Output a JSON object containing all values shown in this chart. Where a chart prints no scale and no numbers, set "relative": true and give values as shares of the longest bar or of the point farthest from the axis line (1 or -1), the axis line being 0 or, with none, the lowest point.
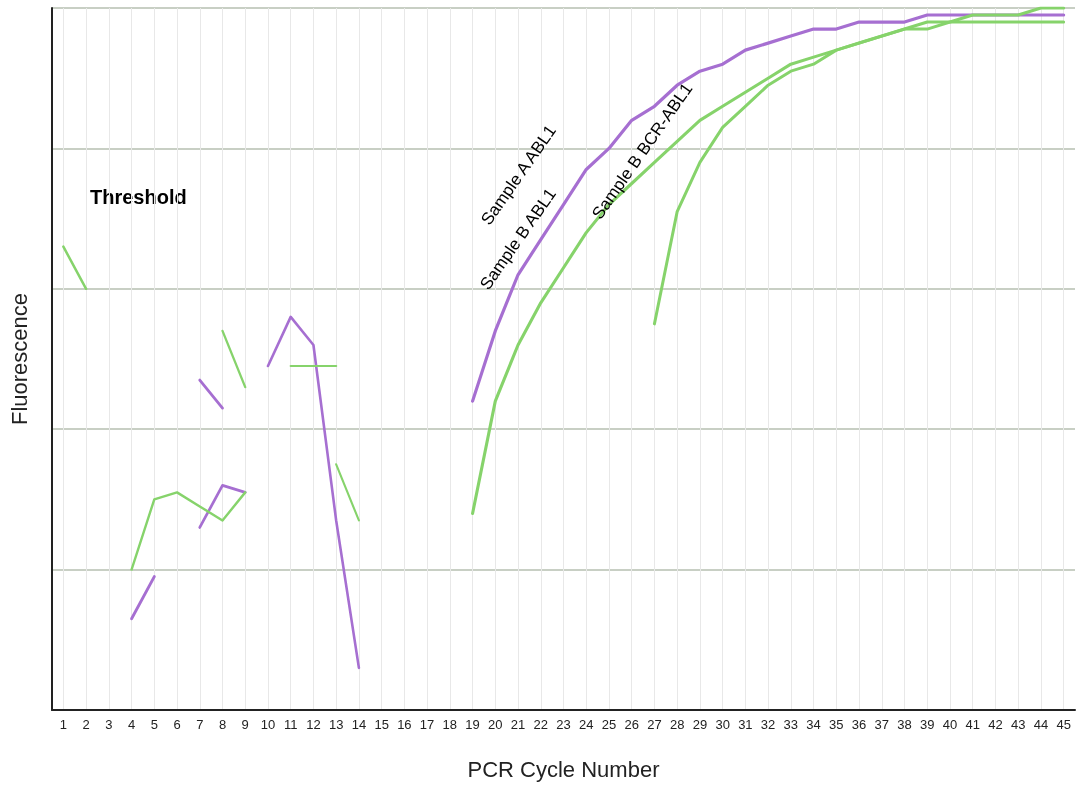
{
  "chart_data": {
    "type": "line",
    "relative": true,
    "xlabel": "PCR Cycle Number",
    "ylabel": "Fluorescence",
    "annotations": [
      "Threshold"
    ],
    "xlim": [
      0.5,
      45.5
    ],
    "xticks": [
      1,
      2,
      3,
      4,
      5,
      6,
      7,
      8,
      9,
      10,
      11,
      12,
      13,
      14,
      15,
      16,
      17,
      18,
      19,
      20,
      21,
      22,
      23,
      24,
      25,
      26,
      27,
      28,
      29,
      30,
      31,
      32,
      33,
      34,
      35,
      36,
      37,
      38,
      39,
      40,
      41,
      42,
      43,
      44,
      45
    ],
    "grid": true,
    "legend": false,
    "marker": "none",
    "line_style": "solid",
    "series": [
      {
        "name": "Sample A ABL1",
        "color": "#a66fd1",
        "x": [
          19,
          20,
          21,
          22,
          23,
          24,
          25,
          26,
          27,
          28,
          29,
          30,
          31,
          32,
          33,
          34,
          35,
          36,
          37,
          38,
          39,
          40,
          41,
          42,
          43,
          44,
          45
        ],
        "values": [
          0.44,
          0.54,
          0.62,
          0.67,
          0.72,
          0.77,
          0.8,
          0.84,
          0.86,
          0.89,
          0.91,
          0.92,
          0.94,
          0.95,
          0.96,
          0.97,
          0.97,
          0.98,
          0.98,
          0.98,
          0.99,
          0.99,
          0.99,
          0.99,
          0.99,
          0.99,
          0.99
        ]
      },
      {
        "name": "Sample B ABL1",
        "color": "#86d36b",
        "x": [
          19,
          20,
          21,
          22,
          23,
          24,
          25,
          26,
          27,
          28,
          29,
          30,
          31,
          32,
          33,
          34,
          35,
          36,
          37,
          38,
          39,
          40,
          41,
          42,
          43,
          44,
          45
        ],
        "values": [
          0.28,
          0.44,
          0.52,
          0.58,
          0.63,
          0.68,
          0.72,
          0.75,
          0.78,
          0.81,
          0.84,
          0.86,
          0.88,
          0.9,
          0.92,
          0.93,
          0.94,
          0.95,
          0.96,
          0.97,
          0.98,
          0.98,
          0.99,
          0.99,
          0.99,
          1.0,
          1.0
        ]
      },
      {
        "name": "Sample B BCR-ABL1",
        "color": "#86d36b",
        "x": [
          27,
          28,
          29,
          30,
          31,
          32,
          33,
          34,
          35,
          36,
          37,
          38,
          39,
          40,
          41,
          42,
          43,
          44,
          45
        ],
        "values": [
          0.55,
          0.71,
          0.78,
          0.83,
          0.86,
          0.89,
          0.91,
          0.92,
          0.94,
          0.95,
          0.96,
          0.97,
          0.97,
          0.98,
          0.98,
          0.98,
          0.98,
          0.98,
          0.98
        ]
      },
      {
        "color": "#a66fd1",
        "x": [
          4,
          5
        ],
        "values": [
          0.13,
          0.19
        ]
      },
      {
        "color": "#a66fd1",
        "x": [
          7,
          8
        ],
        "values": [
          0.47,
          0.43
        ]
      },
      {
        "color": "#a66fd1",
        "x": [
          7,
          8,
          9
        ],
        "values": [
          0.26,
          0.32,
          0.31
        ]
      },
      {
        "color": "#a66fd1",
        "x": [
          10,
          11,
          12,
          13,
          14
        ],
        "values": [
          0.49,
          0.56,
          0.52,
          0.27,
          0.06
        ]
      },
      {
        "color": "#86d36b",
        "x": [
          1,
          2
        ],
        "values": [
          0.66,
          0.6
        ]
      },
      {
        "color": "#86d36b",
        "x": [
          4,
          5,
          6,
          7,
          8,
          9
        ],
        "values": [
          0.2,
          0.3,
          0.31,
          0.29,
          0.27,
          0.31
        ]
      },
      {
        "color": "#86d36b",
        "x": [
          8,
          9
        ],
        "values": [
          0.54,
          0.46
        ]
      },
      {
        "color": "#86d36b",
        "x": [
          11,
          13
        ],
        "values": [
          0.49,
          0.49
        ]
      },
      {
        "color": "#86d36b",
        "x": [
          13,
          14
        ],
        "values": [
          0.35,
          0.27
        ]
      }
    ]
  }
}
